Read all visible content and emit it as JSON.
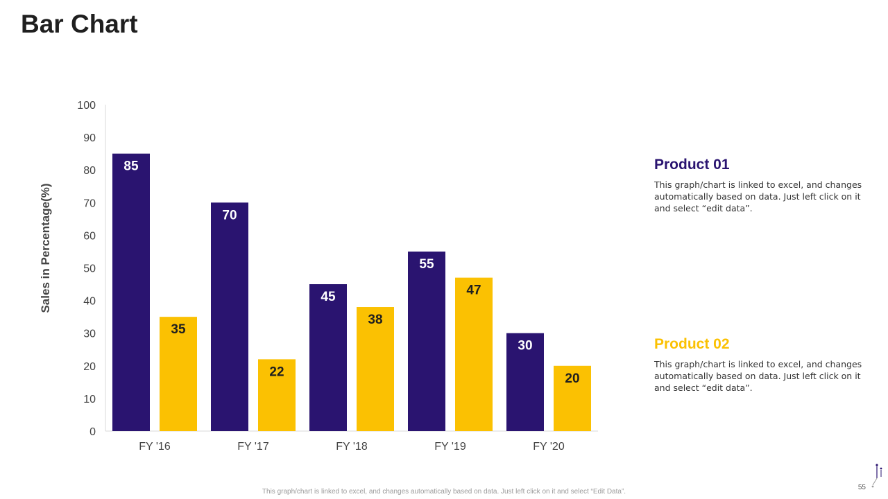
{
  "page": {
    "title": "Bar Chart",
    "footnote": "This graph/chart is linked to excel, and changes automatically based on data. Just left click on it and select “Edit Data”.",
    "page_number": "55"
  },
  "colors": {
    "product_01": "#2a1470",
    "product_02": "#fbc102",
    "axis": "#d9d9d9"
  },
  "legend": [
    {
      "title": "Product 01",
      "description": "This graph/chart is linked to excel, and changes automatically based on data. Just left click on it and select “edit data”."
    },
    {
      "title": "Product 02",
      "description": "This graph/chart is linked to excel, and changes automatically based on data. Just left click on it and select “edit data”."
    }
  ],
  "chart_data": {
    "type": "bar",
    "title": "Bar Chart",
    "xlabel": "",
    "ylabel": "Sales in Percentage(%)",
    "ylim": [
      0,
      100
    ],
    "yticks": [
      0,
      10,
      20,
      30,
      40,
      50,
      60,
      70,
      80,
      90,
      100
    ],
    "grid": false,
    "categories": [
      "FY '16",
      "FY '17",
      "FY '18",
      "FY '19",
      "FY '20"
    ],
    "series": [
      {
        "name": "Product 01",
        "values": [
          85,
          70,
          45,
          55,
          30
        ],
        "label_color": "#ffffff"
      },
      {
        "name": "Product 02",
        "values": [
          35,
          22,
          38,
          47,
          20
        ],
        "label_color": "#1f1f1f"
      }
    ]
  }
}
